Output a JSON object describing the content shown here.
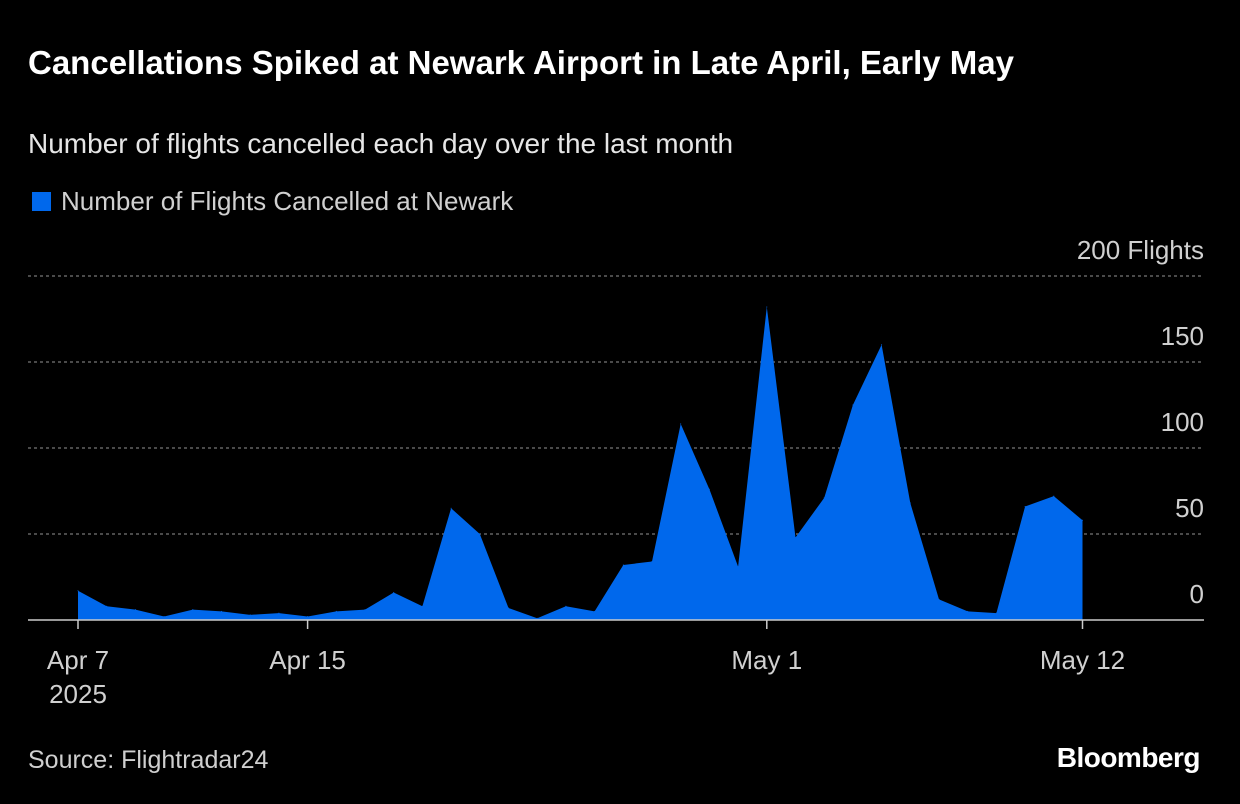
{
  "chart_data": {
    "type": "area",
    "title": "Cancellations Spiked at Newark Airport in Late April, Early May",
    "subtitle": "Number of flights cancelled each day over the last month",
    "legend": [
      {
        "name": "Number of Flights Cancelled at Newark",
        "color": "#0068ec"
      }
    ],
    "legend_position": "top-left",
    "x": [
      "Apr 7",
      "Apr 8",
      "Apr 9",
      "Apr 10",
      "Apr 11",
      "Apr 12",
      "Apr 13",
      "Apr 14",
      "Apr 15",
      "Apr 16",
      "Apr 17",
      "Apr 18",
      "Apr 19",
      "Apr 20",
      "Apr 21",
      "Apr 22",
      "Apr 23",
      "Apr 24",
      "Apr 25",
      "Apr 26",
      "Apr 27",
      "Apr 28",
      "Apr 29",
      "Apr 30",
      "May 1",
      "May 2",
      "May 3",
      "May 4",
      "May 5",
      "May 6",
      "May 7",
      "May 8",
      "May 9",
      "May 10",
      "May 11",
      "May 12"
    ],
    "series": [
      {
        "name": "Number of Flights Cancelled at Newark",
        "values": [
          17,
          8,
          6,
          2,
          6,
          5,
          3,
          4,
          2,
          5,
          6,
          16,
          8,
          65,
          50,
          7,
          1,
          8,
          5,
          32,
          34,
          114,
          76,
          31,
          182,
          48,
          71,
          125,
          160,
          68,
          12,
          5,
          4,
          66,
          72,
          58
        ]
      }
    ],
    "ylim": [
      0,
      200
    ],
    "yticks": [
      {
        "value": 0,
        "label": "0"
      },
      {
        "value": 50,
        "label": "50"
      },
      {
        "value": 100,
        "label": "100"
      },
      {
        "value": 150,
        "label": "150"
      },
      {
        "value": 200,
        "label": "200 Flights"
      }
    ],
    "xticks": [
      {
        "index": 0,
        "label": "Apr 7",
        "sublabel": "2025"
      },
      {
        "index": 8,
        "label": "Apr 15"
      },
      {
        "index": 24,
        "label": "May 1"
      },
      {
        "index": 35,
        "label": "May 12"
      }
    ],
    "grid": true,
    "xlabel": "",
    "ylabel": ""
  },
  "source": "Source: Flightradar24",
  "brand": "Bloomberg"
}
